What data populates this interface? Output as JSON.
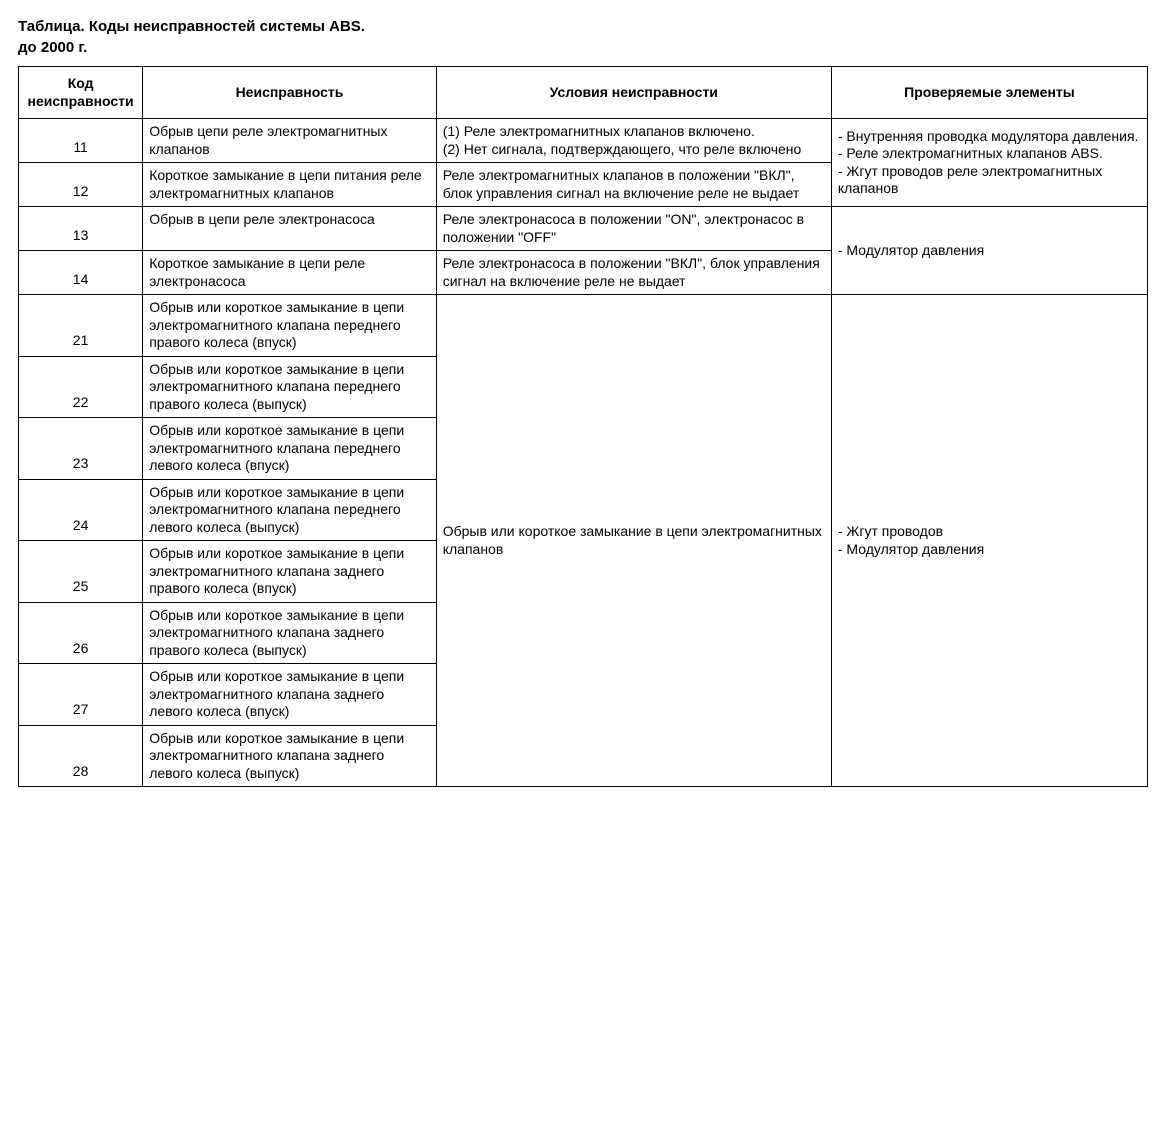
{
  "title": "Таблица. Коды неисправностей системы ABS.",
  "subtitle": "до 2000 г.",
  "columns": {
    "code": "Код неисправности",
    "fault": "Неисправность",
    "cond": "Условия неисправности",
    "check": "Проверяемые элементы"
  },
  "rows": {
    "r11": {
      "code": "11",
      "fault": "Обрыв цепи реле электромагнитных клапанов",
      "cond": "(1) Реле электромагнитных клапанов включено.\n(2) Нет сигнала, подтверждающего, что реле включено"
    },
    "r12": {
      "code": "12",
      "fault": "Короткое замыкание в цепи питания реле электромагнитных клапанов",
      "cond": "Реле электромагнитных клапанов в положении \"ВКЛ\", блок управления сигнал на включение реле не выдает"
    },
    "check_11_12": "- Внутренняя проводка модулятора давления.\n- Реле электромагнитных клапанов ABS.\n- Жгут проводов реле электромагнитных клапанов",
    "r13": {
      "code": "13",
      "fault": "Обрыв в цепи реле электронасоса",
      "cond": "Реле электронасоса в положении \"ON\", электронасос в положении \"OFF\""
    },
    "r14": {
      "code": "14",
      "fault": "Короткое замыкание в цепи реле электронасоса",
      "cond": "Реле электронасоса в положении \"ВКЛ\", блок управления сигнал на включение реле не выдает"
    },
    "check_13_14": "- Модулятор давления",
    "r21": {
      "code": "21",
      "fault": "Обрыв или короткое замыкание в цепи электромагнитного клапана переднего правого колеса (впуск)"
    },
    "r22": {
      "code": "22",
      "fault": "Обрыв или короткое замыкание в цепи электромагнитного клапана переднего правого колеса (выпуск)"
    },
    "r23": {
      "code": "23",
      "fault": "Обрыв или короткое замыкание в цепи электромагнитного клапана переднего левого колеса (впуск)"
    },
    "r24": {
      "code": "24",
      "fault": "Обрыв или короткое замыкание в цепи электромагнитного клапана переднего левого колеса (выпуск)"
    },
    "r25": {
      "code": "25",
      "fault": "Обрыв или короткое замыкание в цепи электромагнитного клапана заднего правого колеса (впуск)"
    },
    "r26": {
      "code": "26",
      "fault": "Обрыв или короткое замыкание в цепи электромагнитного клапана заднего правого колеса (выпуск)"
    },
    "r27": {
      "code": "27",
      "fault": "Обрыв или короткое замыкание в цепи электромагнитного клапана заднего левого колеса (впуск)"
    },
    "r28": {
      "code": "28",
      "fault": "Обрыв или короткое замыкание в цепи электромагнитного клапана заднего левого колеса (выпуск)"
    },
    "cond_21_28": "Обрыв или короткое замыкание в цепи электромагнитных клапанов",
    "check_21_28": "- Жгут проводов\n- Модулятор давления"
  }
}
